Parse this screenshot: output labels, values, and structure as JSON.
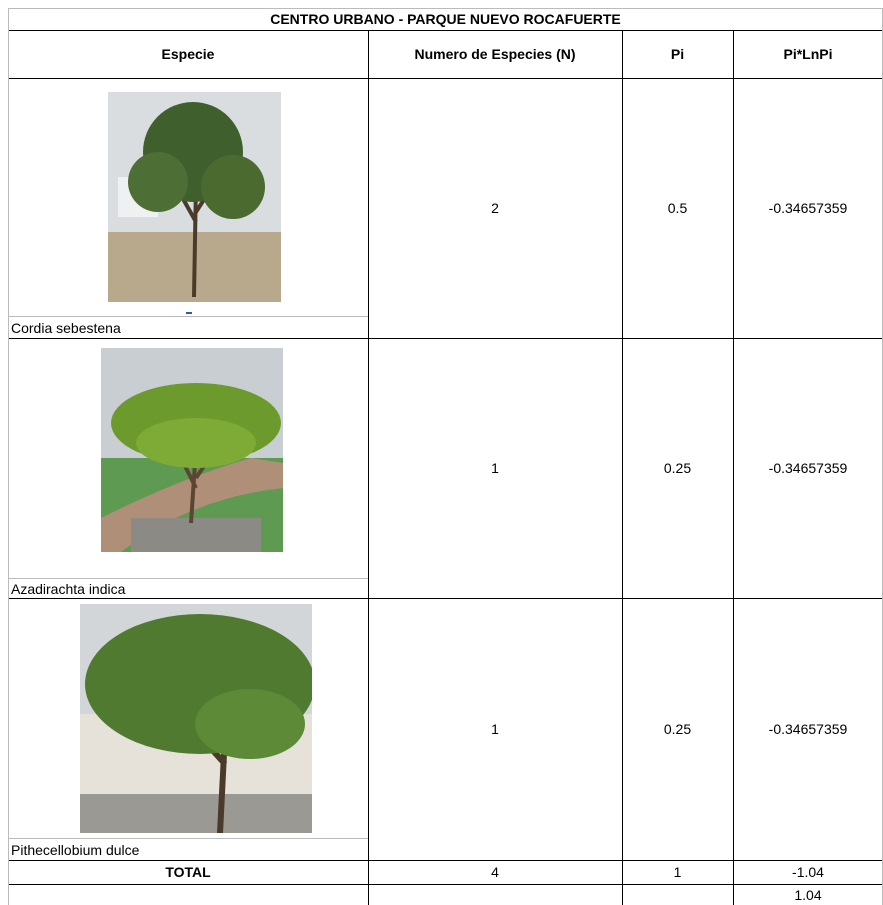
{
  "table": {
    "title": "CENTRO URBANO - PARQUE NUEVO ROCAFUERTE",
    "headers": [
      "Especie",
      "Numero de Especies (N)",
      "Pi",
      "Pi*LnPi"
    ],
    "rows": [
      [
        "Cordia sebestena",
        2,
        0.5,
        -0.34657359
      ],
      [
        "Azadirachta indica",
        1,
        0.25,
        -0.34657359
      ],
      [
        "Pithecellobium dulce",
        1,
        0.25,
        -0.34657359
      ]
    ],
    "total": [
      "TOTAL",
      4,
      1,
      -1.04
    ],
    "footer": 1.04
  }
}
